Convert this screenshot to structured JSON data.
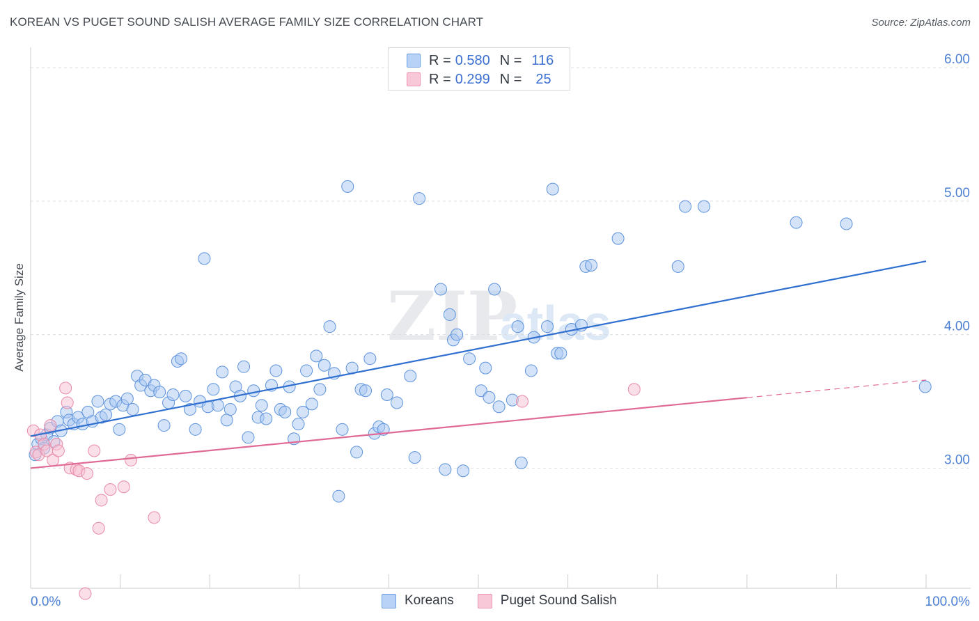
{
  "title": "KOREAN VS PUGET SOUND SALISH AVERAGE FAMILY SIZE CORRELATION CHART",
  "source": "Source: ZipAtlas.com",
  "watermark": {
    "zip": "ZIP",
    "atlas": "atlas"
  },
  "legend": {
    "rows": [
      {
        "r_label": "R =",
        "r_value": "0.580",
        "n_label": "N =",
        "n_value": "116"
      },
      {
        "r_label": "R =",
        "r_value": "0.299",
        "n_label": "N =",
        "n_value": "25"
      }
    ]
  },
  "bottom_legend": {
    "koreans": "Koreans",
    "salish": "Puget Sound Salish"
  },
  "colors": {
    "blue_fill": "#a9c8f2",
    "blue_stroke": "#5d93dc",
    "blue_line": "#2f6fd0",
    "pink_fill": "#f7bfd2",
    "pink_stroke": "#e88aa9",
    "pink_line": "#e06a96",
    "tick_text": "#4a7fd4",
    "grid": "#d9dde2"
  },
  "chart_data": {
    "type": "scatter",
    "title": "KOREAN VS PUGET SOUND SALISH AVERAGE FAMILY SIZE CORRELATION CHART",
    "xlabel": "",
    "ylabel": "Average Family Size",
    "xlim": [
      0,
      100
    ],
    "ylim": [
      2.1,
      6.1
    ],
    "x_tick_labels": [
      "0.0%",
      "100.0%"
    ],
    "y_ticks": [
      3.0,
      4.0,
      5.0,
      6.0
    ],
    "y_tick_labels": [
      "3.00",
      "4.00",
      "5.00",
      "6.00"
    ],
    "series": [
      {
        "name": "Koreans",
        "R": 0.58,
        "N": 116,
        "trend": {
          "x": [
            0,
            100
          ],
          "y": [
            3.24,
            4.55
          ],
          "dashed_from": null
        },
        "points": [
          [
            0.8,
            3.18
          ],
          [
            1.2,
            3.22
          ],
          [
            1.5,
            3.15
          ],
          [
            1.8,
            3.25
          ],
          [
            2.2,
            3.3
          ],
          [
            2.6,
            3.2
          ],
          [
            3.0,
            3.35
          ],
          [
            3.4,
            3.28
          ],
          [
            4.0,
            3.42
          ],
          [
            4.3,
            3.36
          ],
          [
            4.8,
            3.33
          ],
          [
            5.3,
            3.38
          ],
          [
            5.8,
            3.33
          ],
          [
            6.4,
            3.42
          ],
          [
            6.9,
            3.35
          ],
          [
            7.5,
            3.5
          ],
          [
            7.9,
            3.38
          ],
          [
            8.4,
            3.4
          ],
          [
            8.9,
            3.48
          ],
          [
            9.5,
            3.5
          ],
          [
            9.9,
            3.29
          ],
          [
            10.3,
            3.47
          ],
          [
            10.8,
            3.52
          ],
          [
            11.4,
            3.44
          ],
          [
            11.9,
            3.69
          ],
          [
            12.3,
            3.62
          ],
          [
            12.8,
            3.66
          ],
          [
            13.4,
            3.58
          ],
          [
            13.8,
            3.62
          ],
          [
            14.4,
            3.57
          ],
          [
            14.9,
            3.32
          ],
          [
            15.4,
            3.49
          ],
          [
            15.9,
            3.55
          ],
          [
            16.4,
            3.8
          ],
          [
            16.8,
            3.82
          ],
          [
            17.3,
            3.54
          ],
          [
            17.8,
            3.44
          ],
          [
            18.4,
            3.29
          ],
          [
            18.9,
            3.5
          ],
          [
            19.4,
            4.57
          ],
          [
            19.8,
            3.46
          ],
          [
            20.4,
            3.59
          ],
          [
            20.9,
            3.47
          ],
          [
            21.4,
            3.72
          ],
          [
            21.9,
            3.36
          ],
          [
            22.3,
            3.44
          ],
          [
            22.9,
            3.61
          ],
          [
            23.4,
            3.54
          ],
          [
            23.8,
            3.76
          ],
          [
            24.3,
            3.23
          ],
          [
            24.9,
            3.58
          ],
          [
            25.4,
            3.38
          ],
          [
            25.8,
            3.47
          ],
          [
            26.3,
            3.37
          ],
          [
            26.9,
            3.62
          ],
          [
            27.4,
            3.73
          ],
          [
            27.9,
            3.44
          ],
          [
            28.4,
            3.42
          ],
          [
            28.9,
            3.61
          ],
          [
            29.4,
            3.22
          ],
          [
            29.9,
            3.33
          ],
          [
            30.4,
            3.42
          ],
          [
            30.8,
            3.73
          ],
          [
            31.4,
            3.48
          ],
          [
            31.9,
            3.84
          ],
          [
            32.3,
            3.59
          ],
          [
            32.8,
            3.77
          ],
          [
            33.4,
            4.06
          ],
          [
            33.9,
            3.71
          ],
          [
            34.4,
            2.79
          ],
          [
            34.8,
            3.29
          ],
          [
            35.4,
            5.11
          ],
          [
            35.9,
            3.75
          ],
          [
            36.4,
            3.12
          ],
          [
            36.9,
            3.59
          ],
          [
            37.4,
            3.58
          ],
          [
            37.9,
            3.82
          ],
          [
            38.4,
            3.26
          ],
          [
            38.9,
            3.31
          ],
          [
            39.4,
            3.29
          ],
          [
            39.8,
            3.55
          ],
          [
            40.9,
            3.49
          ],
          [
            42.4,
            3.69
          ],
          [
            42.9,
            3.08
          ],
          [
            43.4,
            5.02
          ],
          [
            45.8,
            4.34
          ],
          [
            46.3,
            2.99
          ],
          [
            46.8,
            4.15
          ],
          [
            47.2,
            3.96
          ],
          [
            47.6,
            4.0
          ],
          [
            48.3,
            2.98
          ],
          [
            49.0,
            3.82
          ],
          [
            50.3,
            3.58
          ],
          [
            50.8,
            3.75
          ],
          [
            51.2,
            3.53
          ],
          [
            51.8,
            4.34
          ],
          [
            52.3,
            3.46
          ],
          [
            53.8,
            3.51
          ],
          [
            54.4,
            4.06
          ],
          [
            54.8,
            3.04
          ],
          [
            55.9,
            3.73
          ],
          [
            56.2,
            3.98
          ],
          [
            57.7,
            4.06
          ],
          [
            58.3,
            5.09
          ],
          [
            58.8,
            3.86
          ],
          [
            59.2,
            3.86
          ],
          [
            60.4,
            4.04
          ],
          [
            61.5,
            4.07
          ],
          [
            62.0,
            4.51
          ],
          [
            62.6,
            4.52
          ],
          [
            65.6,
            4.72
          ],
          [
            72.3,
            4.51
          ],
          [
            73.1,
            4.96
          ],
          [
            75.2,
            4.96
          ],
          [
            85.5,
            4.84
          ],
          [
            91.1,
            4.83
          ],
          [
            99.9,
            3.61
          ],
          [
            0.5,
            3.1
          ]
        ]
      },
      {
        "name": "Puget Sound Salish",
        "R": 0.299,
        "N": 25,
        "trend": {
          "x": [
            0,
            100
          ],
          "y": [
            3.0,
            3.66
          ],
          "dashed_from": 80
        },
        "points": [
          [
            0.3,
            3.28
          ],
          [
            0.6,
            3.12
          ],
          [
            0.9,
            3.1
          ],
          [
            1.1,
            3.25
          ],
          [
            1.5,
            3.18
          ],
          [
            1.8,
            3.13
          ],
          [
            2.2,
            3.32
          ],
          [
            2.5,
            3.06
          ],
          [
            2.9,
            3.18
          ],
          [
            3.1,
            3.13
          ],
          [
            3.9,
            3.6
          ],
          [
            4.1,
            3.49
          ],
          [
            4.4,
            3.0
          ],
          [
            5.1,
            2.99
          ],
          [
            5.4,
            2.98
          ],
          [
            6.3,
            2.96
          ],
          [
            7.1,
            3.13
          ],
          [
            7.6,
            2.55
          ],
          [
            7.9,
            2.76
          ],
          [
            8.9,
            2.84
          ],
          [
            10.4,
            2.86
          ],
          [
            11.2,
            3.06
          ],
          [
            13.8,
            2.63
          ],
          [
            6.1,
            2.06
          ],
          [
            67.4,
            3.59
          ]
        ]
      }
    ],
    "extra_salish_points": [
      [
        54.9,
        3.5
      ]
    ]
  }
}
